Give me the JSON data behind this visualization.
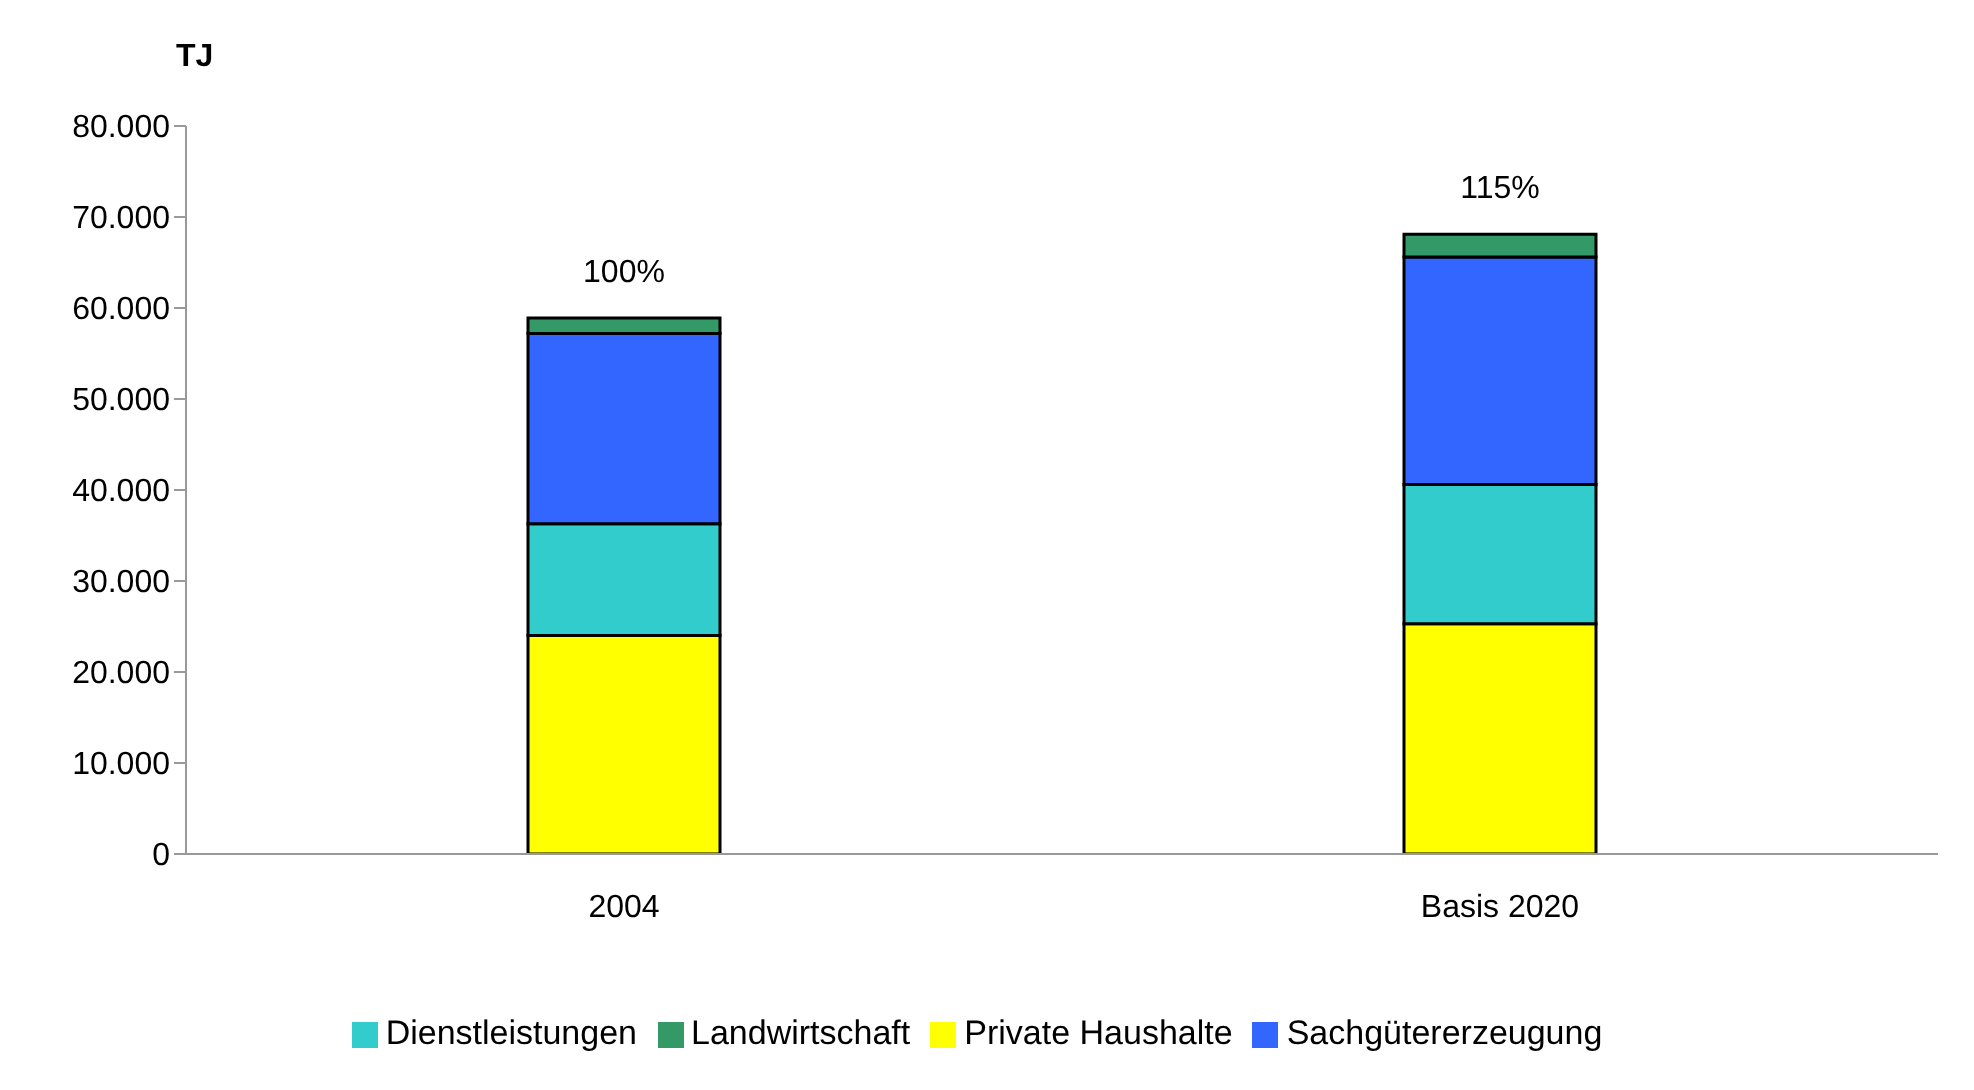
{
  "chart_data": {
    "type": "bar",
    "ylabel": "TJ",
    "categories": [
      "2004",
      "Basis 2020"
    ],
    "stacked": true,
    "series": [
      {
        "name": "Private Haushalte",
        "color": "#ffff00",
        "values": [
          24000,
          25300
        ]
      },
      {
        "name": "Dienstleistungen",
        "color": "#33cccc",
        "values": [
          12300,
          15300
        ]
      },
      {
        "name": "Sachgütererzeugung",
        "color": "#3366ff",
        "values": [
          20900,
          25000
        ]
      },
      {
        "name": "Landwirtschaft",
        "color": "#339966",
        "values": [
          1700,
          2500
        ]
      }
    ],
    "ylim": [
      0,
      80000
    ],
    "yticks": [
      {
        "value": 0,
        "label": "0"
      },
      {
        "value": 10000,
        "label": "10.000"
      },
      {
        "value": 20000,
        "label": "20.000"
      },
      {
        "value": 30000,
        "label": "30.000"
      },
      {
        "value": 40000,
        "label": "40.000"
      },
      {
        "value": 50000,
        "label": "50.000"
      },
      {
        "value": 60000,
        "label": "60.000"
      },
      {
        "value": 70000,
        "label": "70.000"
      },
      {
        "value": 80000,
        "label": "80.000"
      }
    ],
    "annotations": [
      {
        "text": "100%",
        "x": "2004",
        "y": 58900
      },
      {
        "text": "115%",
        "x": "Basis 2020",
        "y": 68100
      }
    ],
    "grid": false,
    "legend": "bottom"
  }
}
